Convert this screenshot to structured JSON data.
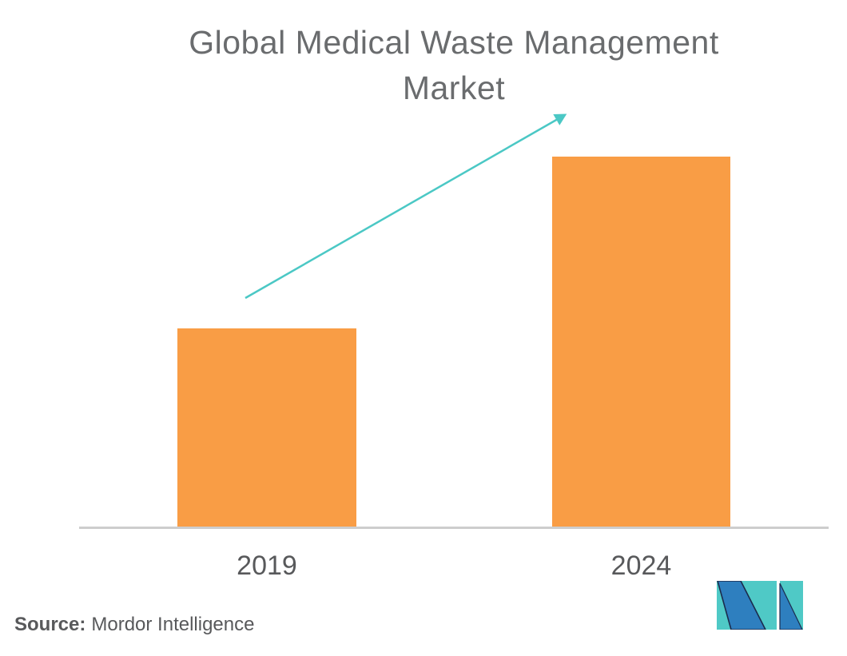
{
  "title": {
    "line1": "Global Medical Waste Management",
    "line2": "Market"
  },
  "source": {
    "label": "Source:",
    "value": "Mordor Intelligence"
  },
  "colors": {
    "background": "#FFFFFF",
    "bar": "#F99D45",
    "arrow": "#4BC8C5",
    "axis_line": "#CDCDCD",
    "title_text": "#6A6C6E",
    "label_text": "#58595B",
    "logo_teal": "#4FC9C6",
    "logo_blue": "#2E7FBF",
    "logo_navy": "#1B2B4C"
  },
  "chart_data": {
    "type": "bar",
    "title": "Global Medical Waste Management Market",
    "categories": [
      "2019",
      "2024"
    ],
    "values": [
      53.7,
      100
    ],
    "values_unit": "percent of tallest bar (no numeric axis or data labels shown)",
    "xlabel": "",
    "ylabel": "",
    "grid": false,
    "legend": false,
    "axis_values_shown": false,
    "bar_color": "#F99D45",
    "annotations": [
      {
        "type": "arrow",
        "description": "teal upward growth arrow pointing from above the 2019 bar toward the top of the 2024 bar",
        "color": "#4BC8C5"
      }
    ],
    "source": "Mordor Intelligence"
  }
}
